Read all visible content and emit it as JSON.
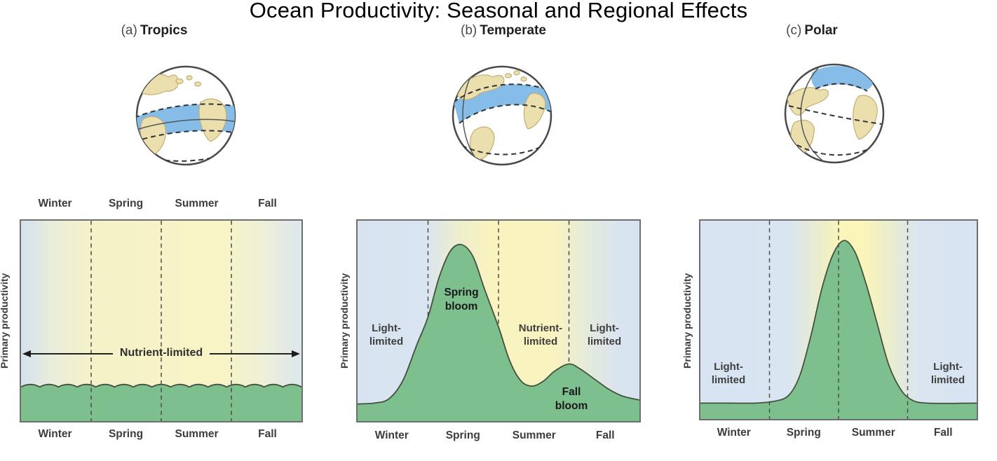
{
  "figure_title": "Ocean Productivity: Seasonal and Regional Effects",
  "panels": [
    {
      "tag": "(a)",
      "globe_highlight_region": "tropical ocean band"
    },
    {
      "tag": "(b)",
      "globe_highlight_region": "northern temperate ocean band"
    },
    {
      "tag": "(c)",
      "globe_highlight_region": "north polar ocean cap"
    }
  ],
  "chart_data": [
    {
      "id": "tropics",
      "title": "Tropics",
      "type": "area",
      "categories": [
        "Winter",
        "Spring",
        "Summer",
        "Fall"
      ],
      "ylabel": "Primary productivity",
      "y_scale": "relative, no numeric axis shown",
      "season_labels_top": true,
      "dividers": [
        0.25,
        0.5,
        0.75
      ],
      "dividers_over_curve": true,
      "curve": {
        "style": "wavy-flat",
        "level": 0.17,
        "wave_count": 15,
        "wave_amp": 0.013,
        "description": "constant low productivity in all four seasons"
      },
      "annotations": [
        {
          "text": "Nutrient-limited",
          "type": "double-arrow-span",
          "span": [
            0,
            1
          ]
        }
      ]
    },
    {
      "id": "temperate",
      "title": "Temperate",
      "type": "area",
      "categories": [
        "Winter",
        "Spring",
        "Summer",
        "Fall"
      ],
      "ylabel": "Primary productivity",
      "y_scale": "relative, no numeric axis shown",
      "season_labels_top": false,
      "dividers": [
        0.25,
        0.5,
        0.75
      ],
      "dividers_over_curve": false,
      "curve": {
        "style": "smooth",
        "description": "large spring bloom peak and small fall bloom peak",
        "points": [
          [
            0,
            0.085
          ],
          [
            0.06,
            0.09
          ],
          [
            0.11,
            0.11
          ],
          [
            0.16,
            0.2
          ],
          [
            0.21,
            0.38
          ],
          [
            0.25,
            0.52
          ],
          [
            0.29,
            0.72
          ],
          [
            0.33,
            0.85
          ],
          [
            0.37,
            0.88
          ],
          [
            0.41,
            0.82
          ],
          [
            0.45,
            0.66
          ],
          [
            0.5,
            0.47
          ],
          [
            0.54,
            0.3
          ],
          [
            0.58,
            0.2
          ],
          [
            0.62,
            0.175
          ],
          [
            0.66,
            0.2
          ],
          [
            0.7,
            0.25
          ],
          [
            0.75,
            0.285
          ],
          [
            0.79,
            0.26
          ],
          [
            0.84,
            0.21
          ],
          [
            0.89,
            0.16
          ],
          [
            0.94,
            0.125
          ],
          [
            1,
            0.105
          ]
        ]
      },
      "annotations": [
        {
          "text": "Light-limited",
          "season": "Winter"
        },
        {
          "text": "Spring bloom",
          "season": "Spring",
          "bold": true
        },
        {
          "text": "Nutrient-limited",
          "season": "Summer"
        },
        {
          "text": "Light-limited",
          "season": "Fall"
        },
        {
          "text": "Fall bloom",
          "season": "Fall",
          "bold": true
        }
      ]
    },
    {
      "id": "polar",
      "title": "Polar",
      "type": "area",
      "categories": [
        "Winter",
        "Spring",
        "Summer",
        "Fall"
      ],
      "ylabel": "Primary productivity",
      "y_scale": "relative, no numeric axis shown",
      "season_labels_top": false,
      "dividers": [
        0.25,
        0.5,
        0.75
      ],
      "dividers_over_curve": true,
      "curve": {
        "style": "smooth",
        "description": "single large bloom centered on late spring and summer",
        "points": [
          [
            0,
            0.08
          ],
          [
            0.1,
            0.08
          ],
          [
            0.2,
            0.08
          ],
          [
            0.27,
            0.09
          ],
          [
            0.32,
            0.12
          ],
          [
            0.36,
            0.22
          ],
          [
            0.4,
            0.42
          ],
          [
            0.44,
            0.66
          ],
          [
            0.48,
            0.83
          ],
          [
            0.52,
            0.9
          ],
          [
            0.56,
            0.84
          ],
          [
            0.6,
            0.68
          ],
          [
            0.64,
            0.48
          ],
          [
            0.68,
            0.28
          ],
          [
            0.72,
            0.16
          ],
          [
            0.76,
            0.1
          ],
          [
            0.82,
            0.08
          ],
          [
            1,
            0.08
          ]
        ]
      },
      "annotations": [
        {
          "text": "Light-limited",
          "season": "Winter"
        },
        {
          "text": "Light-limited",
          "season": "Fall"
        }
      ]
    }
  ],
  "colors": {
    "productivity_fill": "#7dbf8d",
    "curve_stroke": "#44503f",
    "light_limited_tint": "#d8e4f1",
    "light_available_tint": "#f9f3c0",
    "globe_highlight": "#85bce8",
    "globe_land": "#ecdfae",
    "chart_border": "#6f6f6f",
    "divider": "#4d4d4d",
    "label_text": "#3c3c3c",
    "title_text": "#000000"
  }
}
